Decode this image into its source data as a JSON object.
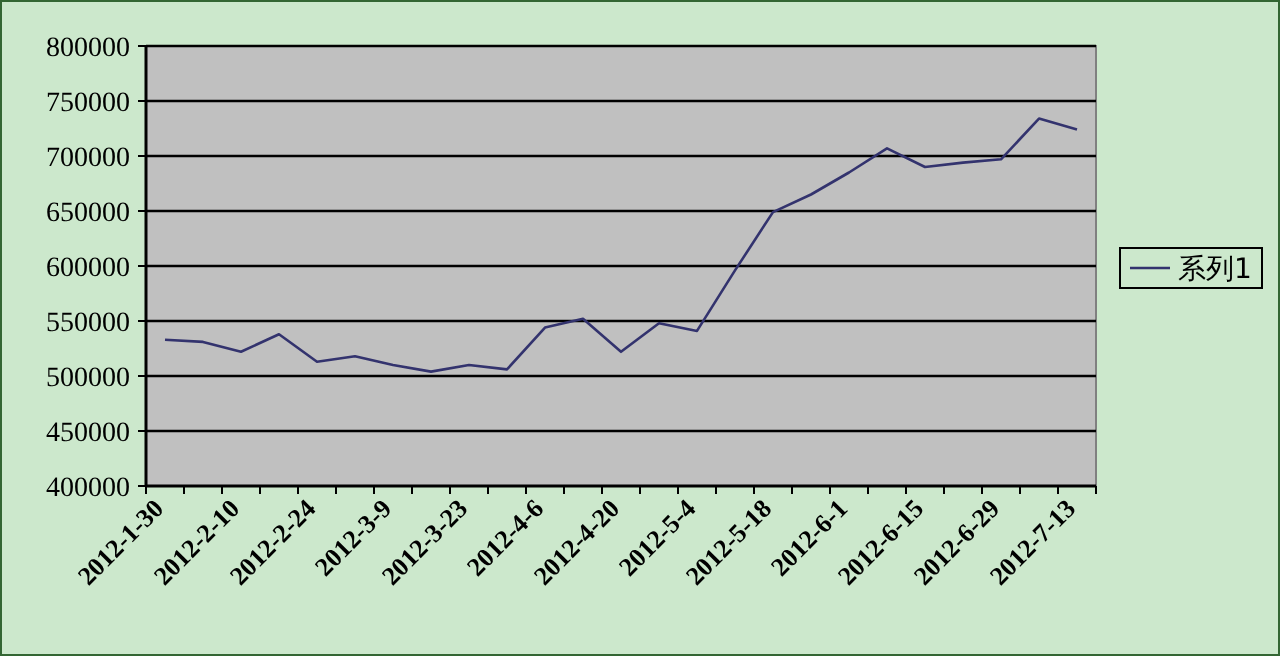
{
  "chart_data": {
    "type": "line",
    "categories": [
      "2012-1-30",
      null,
      "2012-2-10",
      null,
      "2012-2-24",
      null,
      "2012-3-9",
      null,
      "2012-3-23",
      null,
      "2012-4-6",
      null,
      "2012-4-20",
      null,
      "2012-5-4",
      null,
      "2012-5-18",
      null,
      "2012-6-1",
      null,
      "2012-6-15",
      null,
      "2012-6-29",
      null,
      "2012-7-13"
    ],
    "series": [
      {
        "name": "系列1",
        "color": "#33336e",
        "values": [
          533000,
          531000,
          522000,
          538000,
          513000,
          518000,
          510000,
          504000,
          510000,
          506000,
          544000,
          552000,
          522000,
          548000,
          541000,
          596000,
          649000,
          665000,
          685000,
          707000,
          690000,
          694000,
          697000,
          734000,
          724000
        ]
      }
    ],
    "ylim": [
      400000,
      800000
    ],
    "yticks": [
      400000,
      450000,
      500000,
      550000,
      600000,
      650000,
      700000,
      750000,
      800000
    ],
    "grid": "y",
    "legend": "right",
    "marker": "none",
    "line_style": "solid"
  }
}
